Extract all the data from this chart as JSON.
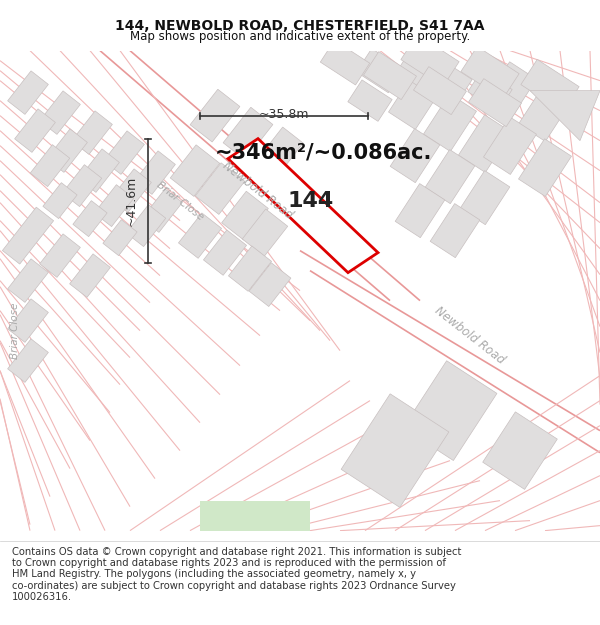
{
  "title": "144, NEWBOLD ROAD, CHESTERFIELD, S41 7AA",
  "subtitle": "Map shows position and indicative extent of the property.",
  "footer_lines": [
    "Contains OS data © Crown copyright and database right 2021. This information is subject",
    "to Crown copyright and database rights 2023 and is reproduced with the permission of",
    "HM Land Registry. The polygons (including the associated geometry, namely x, y",
    "co-ordinates) are subject to Crown copyright and database rights 2023 Ordnance Survey",
    "100026316."
  ],
  "area_text": "~346m²/~0.086ac.",
  "property_number": "144",
  "dim_width": "~35.8m",
  "dim_height": "~41.6m",
  "label_newbold_road_top": "Newbold Road",
  "label_newbold_road_right": "Newbold Road",
  "label_briar_close_left": "Briar Close",
  "label_briar_close_diag": "Briar Close",
  "map_bg": "#ffffff",
  "road_line_color": "#f0b8b8",
  "road_line_color2": "#e89898",
  "building_fill": "#e0dede",
  "building_edge": "#c8c0c0",
  "plot_outline_color": "#dd0000",
  "plot_fill_color": "#ffffff",
  "dim_line_color": "#333333",
  "text_color": "#111111",
  "label_color": "#aaaaaa",
  "title_fontsize": 10,
  "subtitle_fontsize": 8.5,
  "footer_fontsize": 7.2,
  "area_fontsize": 15,
  "prop_num_fontsize": 16,
  "dim_fontsize": 9
}
